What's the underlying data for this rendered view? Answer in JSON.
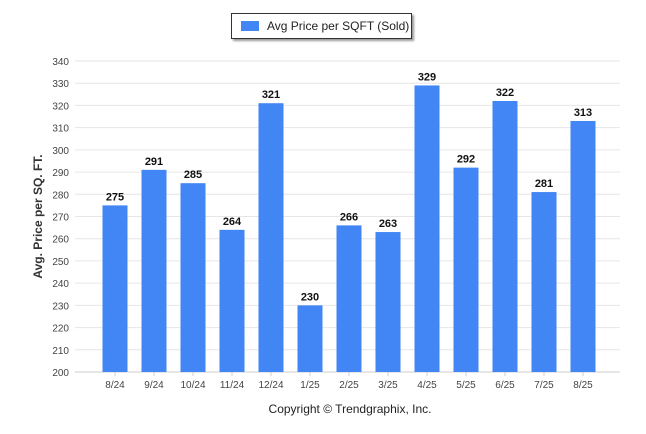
{
  "chart_data": {
    "type": "bar",
    "categories": [
      "8/24",
      "9/24",
      "10/24",
      "11/24",
      "12/24",
      "1/25",
      "2/25",
      "3/25",
      "4/25",
      "5/25",
      "6/25",
      "7/25",
      "8/25"
    ],
    "series": [
      {
        "name": "Avg Price per SQFT (Sold)",
        "values": [
          275,
          291,
          285,
          264,
          321,
          230,
          266,
          263,
          329,
          292,
          322,
          281,
          313
        ],
        "color": "#4285f4"
      }
    ],
    "ylabel": "Avg. Price per SQ. FT.",
    "ylim": [
      200,
      340
    ],
    "yticks": [
      200,
      210,
      220,
      230,
      240,
      250,
      260,
      270,
      280,
      290,
      300,
      310,
      320,
      330,
      340
    ],
    "grid": true,
    "legend_position": "top-center",
    "data_labels": true
  },
  "footer": {
    "copyright": "Copyright © Trendgraphix, Inc."
  }
}
